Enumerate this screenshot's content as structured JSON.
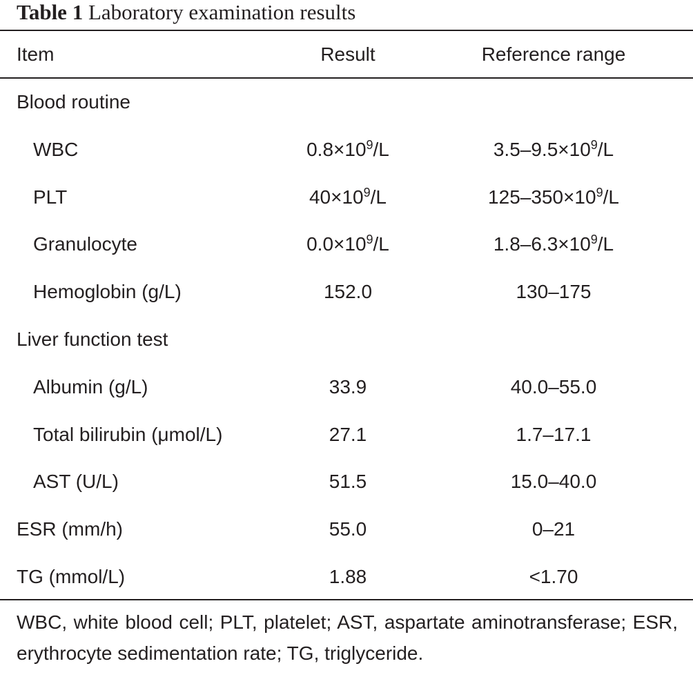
{
  "caption": {
    "label": "Table 1",
    "title": "Laboratory examination results"
  },
  "columns": [
    "Item",
    "Result",
    "Reference range"
  ],
  "rows": [
    {
      "item": "Blood routine",
      "result": "",
      "reference": "",
      "indent": false
    },
    {
      "item": "WBC",
      "result": "0.8×10^9/L",
      "reference": "3.5–9.5×10^9/L",
      "indent": true
    },
    {
      "item": "PLT",
      "result": "40×10^9/L",
      "reference": "125–350×10^9/L",
      "indent": true
    },
    {
      "item": "Granulocyte",
      "result": "0.0×10^9/L",
      "reference": "1.8–6.3×10^9/L",
      "indent": true
    },
    {
      "item": "Hemoglobin (g/L)",
      "result": "152.0",
      "reference": "130–175",
      "indent": true
    },
    {
      "item": "Liver function test",
      "result": "",
      "reference": "",
      "indent": false
    },
    {
      "item": "Albumin (g/L)",
      "result": "33.9",
      "reference": "40.0–55.0",
      "indent": true
    },
    {
      "item": "Total bilirubin (μmol/L)",
      "result": "27.1",
      "reference": "1.7–17.1",
      "indent": true
    },
    {
      "item": "AST (U/L)",
      "result": "51.5",
      "reference": "15.0–40.0",
      "indent": true
    },
    {
      "item": "ESR (mm/h)",
      "result": "55.0",
      "reference": "0–21",
      "indent": false
    },
    {
      "item": "TG (mmol/L)",
      "result": "1.88",
      "reference": "<1.70",
      "indent": false
    }
  ],
  "footnote": "WBC, white blood cell; PLT, platelet; AST, aspartate aminotransferase; ESR, erythrocyte sedimentation rate; TG, triglyceride."
}
